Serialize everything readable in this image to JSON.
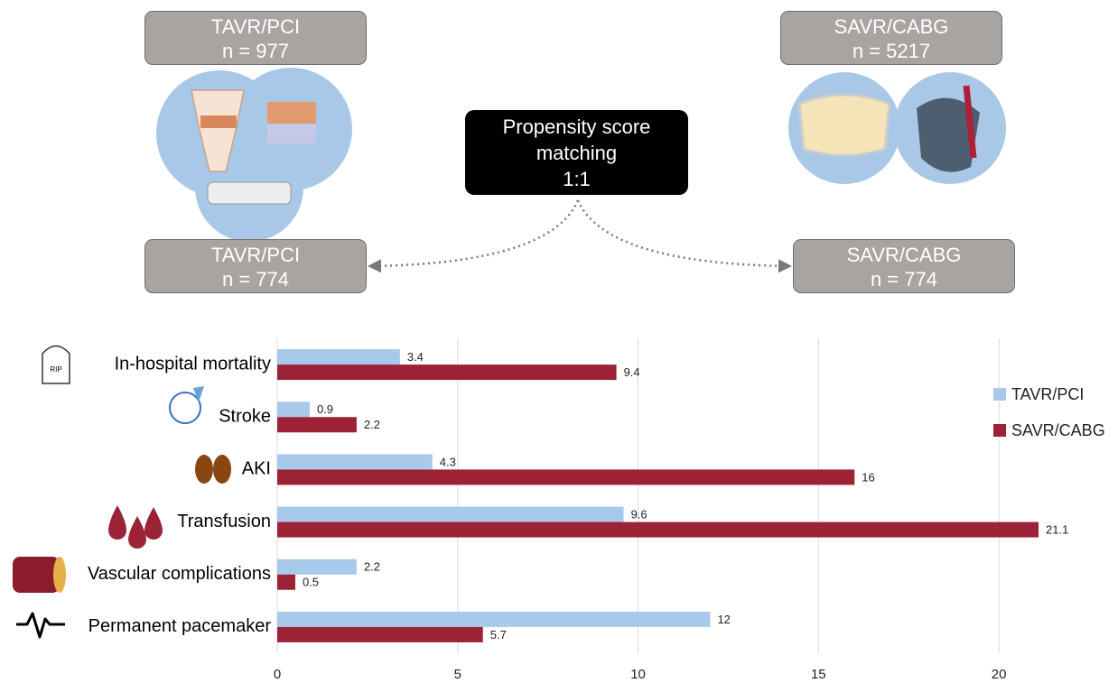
{
  "diagram": {
    "boxes": [
      {
        "title": "TAVR/PCI",
        "n": "n = 977"
      },
      {
        "title": "SAVR/CABG",
        "n": "n = 5217"
      },
      {
        "title": "TAVR/PCI",
        "n": "n = 774"
      },
      {
        "title": "SAVR/CABG",
        "n": "n = 774"
      }
    ],
    "matching": {
      "label": "Propensity score matching",
      "ratio": "1:1"
    }
  },
  "chart_data": {
    "type": "bar",
    "orientation": "horizontal",
    "categories": [
      "In-hospital mortality",
      "Stroke",
      "AKI",
      "Transfusion",
      "Vascular complications",
      "Permanent pacemaker"
    ],
    "series": [
      {
        "name": "TAVR/PCI",
        "color": "#a9c9ea",
        "values": [
          3.4,
          0.9,
          4.3,
          9.6,
          2.2,
          12
        ]
      },
      {
        "name": "SAVR/CABG",
        "color": "#9b2335",
        "values": [
          9.4,
          2.2,
          16,
          21.1,
          0.5,
          5.7
        ]
      }
    ],
    "xlim": [
      0,
      22
    ],
    "xticks": [
      0,
      5,
      10,
      15,
      20
    ],
    "grid": true,
    "legend": "right"
  }
}
